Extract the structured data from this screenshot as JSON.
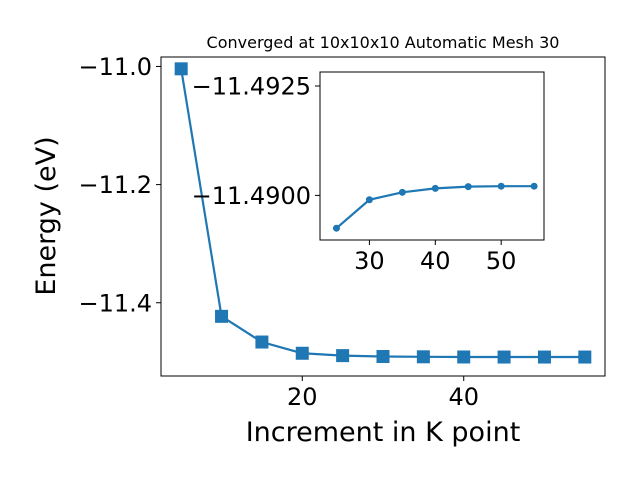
{
  "chart_data": [
    {
      "type": "line",
      "title": "Converged at 10x10x10 Automatic Mesh 30",
      "xlabel": "Increment in K point",
      "ylabel": "Energy (eV)",
      "x": [
        5,
        10,
        15,
        20,
        25,
        30,
        35,
        40,
        45,
        50,
        55
      ],
      "series": [
        {
          "values": [
            -11.004,
            -11.423,
            -11.4665,
            -11.4855,
            -11.4895,
            -11.491,
            -11.4915,
            -11.4918,
            -11.4919,
            -11.4919,
            -11.4919
          ]
        }
      ],
      "xlim": [
        2.5,
        57.5
      ],
      "ylim": [
        -11.524,
        -10.984
      ],
      "xticks": [
        20,
        40
      ],
      "yticks": [
        -11.0,
        -11.2,
        -11.4
      ],
      "xtick_labels": [
        "20",
        "40"
      ],
      "ytick_labels": [
        "−11.0",
        "−11.2",
        "−11.4"
      ],
      "marker": "square",
      "color": "#1f77b4",
      "grid": false
    },
    {
      "type": "line",
      "x": [
        25,
        30,
        35,
        40,
        45,
        50,
        55
      ],
      "series": [
        {
          "values": [
            -11.48925,
            -11.4899,
            -11.49007,
            -11.49016,
            -11.4902,
            -11.49021,
            -11.49021
          ]
        }
      ],
      "xlim": [
        22.5,
        56.5
      ],
      "ylim": [
        -11.48898,
        -11.49282
      ],
      "xticks": [
        30,
        40,
        50
      ],
      "yticks": [
        -11.4925,
        -11.49
      ],
      "xtick_labels": [
        "30",
        "40",
        "50"
      ],
      "ytick_labels": [
        "−11.4925",
        "−11.4900"
      ],
      "marker": "circle",
      "color": "#1f77b4",
      "grid": false
    }
  ]
}
